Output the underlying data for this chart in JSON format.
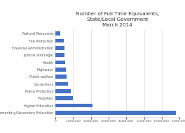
{
  "title": "Number of Full Time Equivalents,\nState/Local Government\nMarch 2014",
  "categories": [
    "Elementary/Secondary Education",
    "Higher Education",
    "Hospitals",
    "Police Protection",
    "Corrections",
    "Public welfare",
    "Highways",
    "Health",
    "Judicial and Legal",
    "Financial Administration",
    "Fire Protection",
    "Natural Resources"
  ],
  "values": [
    6800000,
    2100000,
    980000,
    880000,
    720000,
    620000,
    580000,
    560000,
    510000,
    500000,
    480000,
    280000
  ],
  "bar_color": "#4472C4",
  "xlim": [
    0,
    7000000
  ],
  "xticks": [
    0,
    1000000,
    2000000,
    3000000,
    4000000,
    5000000,
    6000000,
    7000000
  ],
  "title_fontsize": 5.2,
  "label_fontsize": 3.5,
  "tick_fontsize": 3.2,
  "background_color": "#ffffff",
  "bar_height": 0.55,
  "grid_color": "#d0d0d0",
  "text_color": "#555555"
}
